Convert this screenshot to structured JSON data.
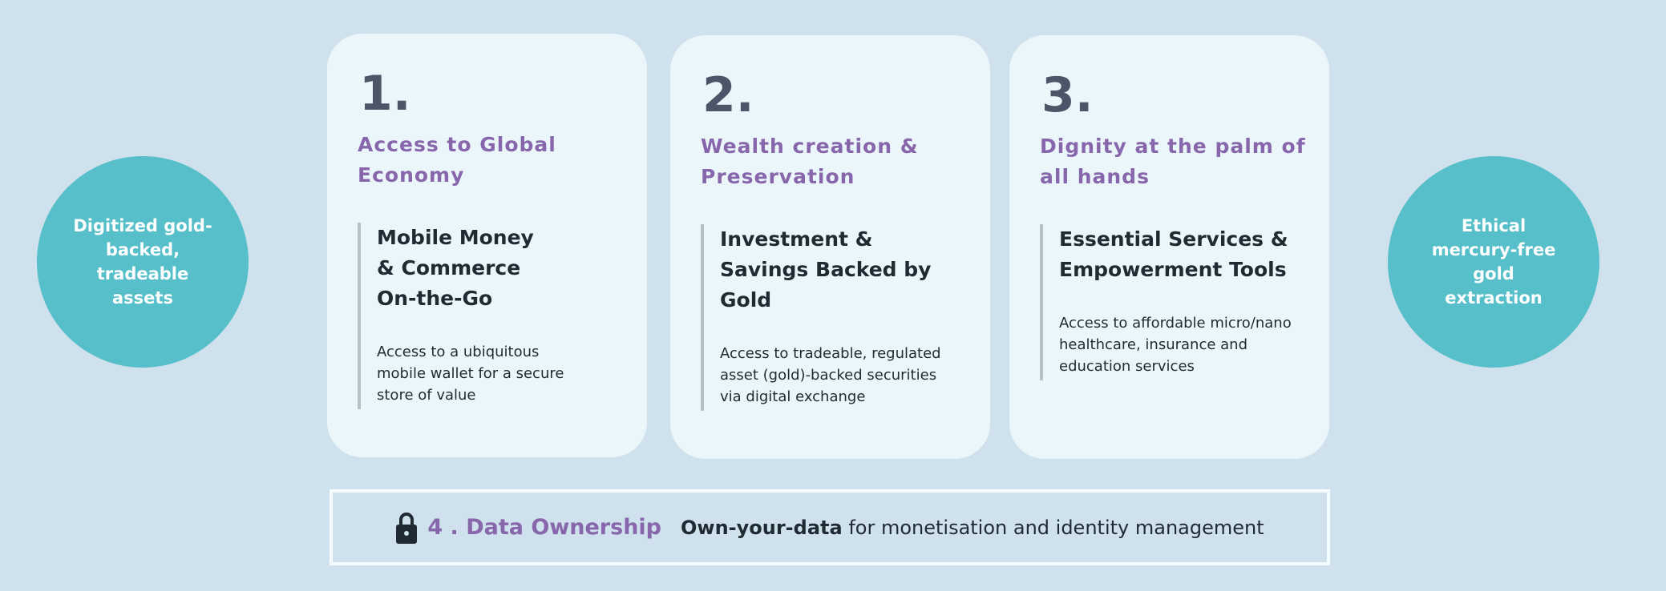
{
  "left_circle": {
    "text": "Digitized gold-backed, tradeable assets"
  },
  "right_circle": {
    "text": "Ethical mercury-free gold extraction"
  },
  "cards": [
    {
      "number": "1.",
      "title": "Access to Global Economy",
      "subtitle": "Mobile Money & Commerce On-the-Go",
      "description": "Access to a ubiquitous mobile wallet for a secure store of value"
    },
    {
      "number": "2.",
      "title": "Wealth creation & Preservation",
      "subtitle": "Investment & Savings Backed by Gold",
      "description": "Access to tradeable, regulated asset (gold)-backed securities via digital exchange"
    },
    {
      "number": "3.",
      "title": "Dignity at the palm of all hands",
      "subtitle": "Essential Services & Empowerment Tools",
      "description": "Access to affordable micro/nano healthcare, insurance and education services"
    }
  ],
  "bottom": {
    "icon": "lock-icon",
    "title": "4 . Data Ownership",
    "bold_text": "Own-your-data",
    "text": " for monetisation and identity management"
  },
  "colors": {
    "background": "#cfe1ec",
    "circle": "#56bfca",
    "card": "#ebf6fb",
    "accent_purple": "#8766ab",
    "dark_text": "#1f2a33"
  }
}
